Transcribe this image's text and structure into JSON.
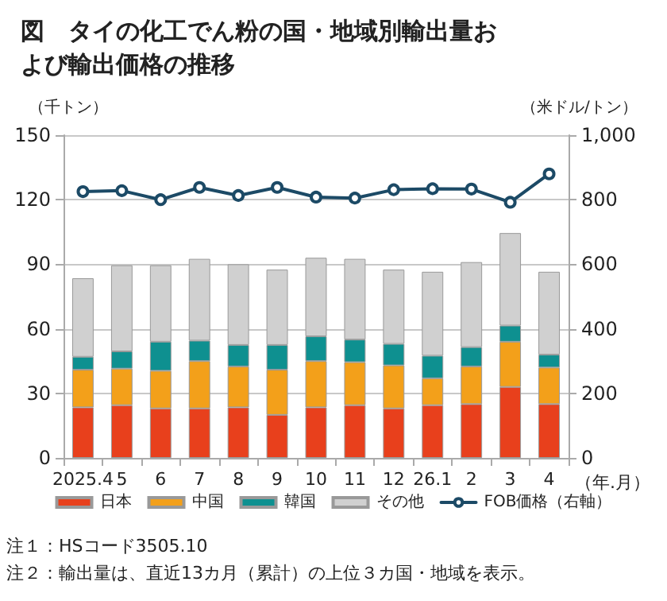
{
  "chart_data": {
    "type": "bar",
    "title": "図　タイの化工でん粉の国・地域別輸出量および輸出価格の推移",
    "ylabel": "（千トン）",
    "y2label": "（米ドル/トン）",
    "xlabel": "（年.月）",
    "categories": [
      "2025.4",
      "5",
      "6",
      "7",
      "8",
      "9",
      "10",
      "11",
      "12",
      "26.1",
      "2",
      "3",
      "4"
    ],
    "stacked": true,
    "series": [
      {
        "name": "日本",
        "color": "#e8401c",
        "values": [
          23.5,
          24.5,
          23,
          23,
          23.5,
          20,
          23.5,
          24.5,
          23,
          24.5,
          25,
          33,
          25
        ]
      },
      {
        "name": "中国",
        "color": "#f3a01a",
        "values": [
          17.5,
          17,
          17.5,
          22,
          19,
          21,
          21.5,
          20,
          20,
          12.5,
          17.5,
          21,
          17
        ]
      },
      {
        "name": "韓国",
        "color": "#0e9090",
        "values": [
          6,
          8,
          13.5,
          9.5,
          10,
          11.5,
          11.5,
          10.5,
          10,
          10.5,
          9,
          7.5,
          6
        ]
      },
      {
        "name": "その他",
        "color": "#d0d0d0",
        "values": [
          36.5,
          40,
          35.5,
          38,
          37.5,
          35,
          36.5,
          37.5,
          34.5,
          39,
          39.5,
          43,
          38.5
        ]
      },
      {
        "name": "FOB価格（右軸）",
        "type": "line",
        "axis": "y2",
        "color": "#1c4a66",
        "marker": "circle",
        "line_style": "solid",
        "values": [
          825,
          828,
          800,
          838,
          813,
          838,
          808,
          805,
          831,
          834,
          833,
          792,
          880
        ]
      }
    ],
    "ylim": [
      0,
      150
    ],
    "yticks": [
      0,
      30,
      60,
      90,
      120,
      150
    ],
    "y2lim": [
      0,
      1000
    ],
    "y2ticks": [
      0,
      200,
      400,
      600,
      800,
      {
        "value": 1000,
        "label": "1,000"
      }
    ],
    "grid": "y",
    "legend": "bottom",
    "annotations": [
      "注１：HSコード3505.10",
      "注２：輸出量は、直近13カ月（累計）の上位３カ国・地域を表示。"
    ]
  }
}
